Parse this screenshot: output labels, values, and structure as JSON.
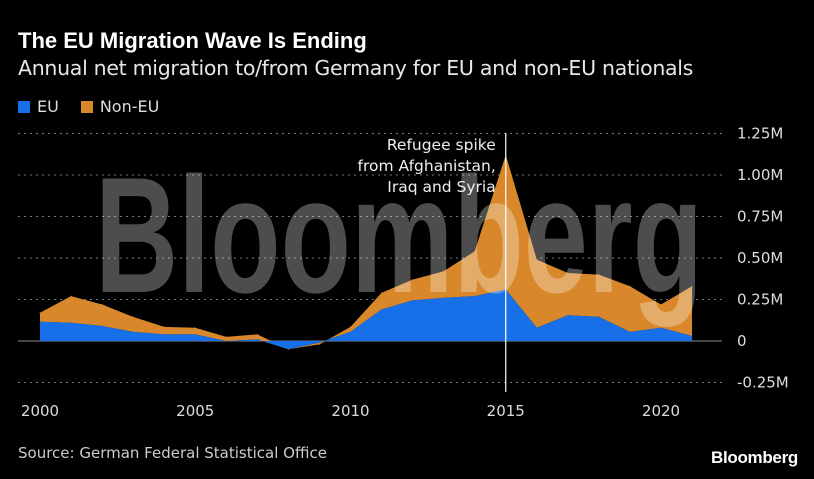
{
  "title": "The EU Migration Wave Is Ending",
  "subtitle": "Annual net migration to/from Germany for EU and non-EU nationals",
  "source": "Source: German Federal Statistical Office",
  "logo": "Bloomberg",
  "watermark": "Bloomberg",
  "colors": {
    "eu": "#1770e8",
    "non_eu": "#d8882b"
  },
  "chart_data": {
    "type": "area",
    "stacked": true,
    "title": "The EU Migration Wave Is Ending",
    "subtitle": "Annual net migration to/from Germany for EU and non-EU nationals",
    "x": [
      2000,
      2001,
      2002,
      2003,
      2004,
      2005,
      2006,
      2007,
      2008,
      2009,
      2010,
      2011,
      2012,
      2013,
      2014,
      2015,
      2016,
      2017,
      2018,
      2019,
      2020,
      2021
    ],
    "series": [
      {
        "name": "EU",
        "values": [
          0.116,
          0.11,
          0.09,
          0.055,
          0.04,
          0.04,
          0.0,
          0.01,
          -0.05,
          -0.01,
          0.055,
          0.19,
          0.245,
          0.26,
          0.27,
          0.31,
          0.08,
          0.155,
          0.145,
          0.055,
          0.08,
          0.03
        ]
      },
      {
        "name": "Non-EU",
        "values": [
          0.054,
          0.16,
          0.13,
          0.09,
          0.045,
          0.04,
          0.025,
          0.03,
          0.0,
          -0.01,
          0.03,
          0.1,
          0.125,
          0.16,
          0.27,
          0.81,
          0.41,
          0.255,
          0.255,
          0.275,
          0.14,
          0.3
        ]
      }
    ],
    "unit": "M",
    "ylim": [
      -0.25,
      1.25
    ],
    "yticks": [
      1.25,
      1.0,
      0.75,
      0.5,
      0.25,
      0,
      -0.25
    ],
    "ytick_labels": [
      "1.25M",
      "1.00M",
      "0.75M",
      "0.50M",
      "0.25M",
      "0",
      "-0.25M"
    ],
    "xticks": [
      2000,
      2005,
      2010,
      2015,
      2020
    ],
    "xtick_labels": [
      "2000",
      "2005",
      "2010",
      "2015",
      "2020"
    ],
    "xlim": [
      1999.4,
      2022.5
    ],
    "grid": true,
    "legend": "top-left",
    "legend_entries": [
      "EU",
      "Non-EU"
    ],
    "annotation": {
      "x": 2015,
      "lines": [
        "Refugee spike",
        "from Afghanistan,",
        "Iraq and Syria"
      ]
    }
  }
}
